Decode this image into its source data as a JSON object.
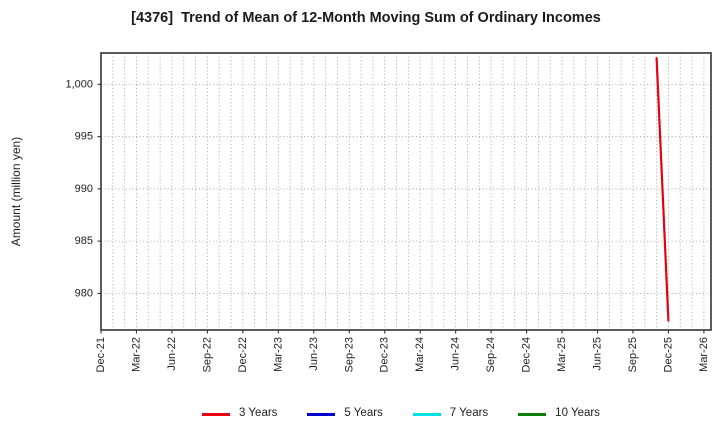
{
  "chart_data": {
    "type": "line",
    "title": "[4376]  Trend of Mean of 12-Month Moving Sum of Ordinary Incomes",
    "xlabel": "",
    "ylabel": "Amount (million yen)",
    "x_unit": "month",
    "x_start": "Dec-21",
    "x_end": "Mar-26",
    "x_tick_every_months": 3,
    "x_tick_labels": [
      "Dec-21",
      "Mar-22",
      "Jun-22",
      "Sep-22",
      "Dec-22",
      "Mar-23",
      "Jun-23",
      "Sep-23",
      "Dec-23",
      "Mar-24",
      "Jun-24",
      "Sep-24",
      "Dec-24",
      "Mar-25",
      "Jun-25",
      "Sep-25",
      "Dec-25",
      "Mar-26"
    ],
    "xlim_month_index": [
      0,
      51.6
    ],
    "ylim": [
      976.5,
      1003.0
    ],
    "yticks": [
      980,
      985,
      990,
      995,
      1000
    ],
    "ytick_labels": [
      "980",
      "985",
      "990",
      "995",
      "1,000"
    ],
    "grid": true,
    "grid_style": "dotted, vertical every month, horizontal every 5 units",
    "legend_position": "bottom",
    "series": [
      {
        "name": "3 Years",
        "color": "#e60012",
        "points": [
          {
            "x": "Nov-25",
            "y": 1002.5
          },
          {
            "x": "Dec-25",
            "y": 977.4
          }
        ]
      },
      {
        "name": "5 Years",
        "color": "#0000cd",
        "points": []
      },
      {
        "name": "7 Years",
        "color": "#00e0e6",
        "points": []
      },
      {
        "name": "10 Years",
        "color": "#0e7d0e",
        "points": []
      }
    ],
    "colors": {
      "grid": "#a9a9a9",
      "spine": "#333333",
      "text": "#1f1f1f",
      "background": "#ffffff"
    }
  }
}
